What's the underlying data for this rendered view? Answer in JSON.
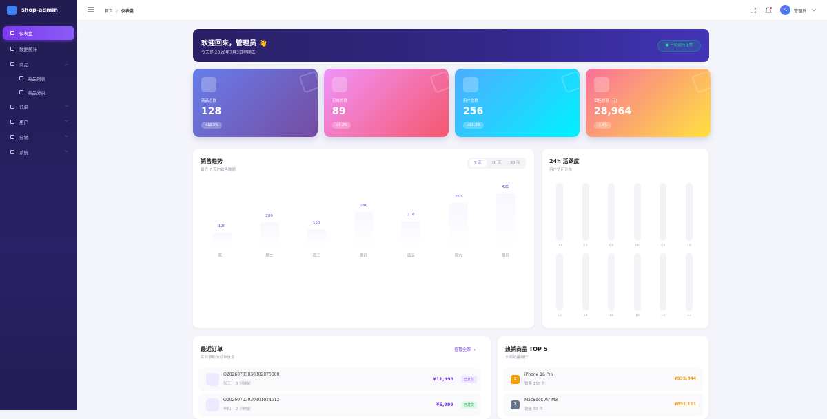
{
  "brand": "shop-admin",
  "menu": [
    {
      "label": "仪表盘"
    },
    {
      "label": "数据统计"
    },
    {
      "label": "商品",
      "children": [
        "商品列表",
        "商品分类"
      ]
    },
    {
      "label": "订单"
    },
    {
      "label": "用户"
    },
    {
      "label": "分销"
    },
    {
      "label": "系统"
    }
  ],
  "breadcrumb": [
    "首页",
    "仪表盘"
  ],
  "user": {
    "avatar": "A",
    "name": "管理员"
  },
  "welcome": {
    "title": "欢迎回来，管理员 👋",
    "date": "今天是 2026年7月3日星期五",
    "status": "一切运行正常"
  },
  "stats": [
    {
      "label": "商品总数",
      "value": "128",
      "change": "+12.5%"
    },
    {
      "label": "订单总数",
      "value": "89",
      "change": "+8.2%"
    },
    {
      "label": "用户总数",
      "value": "256",
      "change": "+15.3%"
    },
    {
      "label": "销售总额 (元)",
      "value": "28,964",
      "change": "-2.4%"
    }
  ],
  "sales_chart": {
    "title": "销售趋势",
    "subtitle": "最近 7 天的销售数据",
    "ranges": [
      "7 天",
      "30 天",
      "90 天"
    ],
    "categories": [
      "周一",
      "周二",
      "周三",
      "周四",
      "周五",
      "周六",
      "周日"
    ],
    "values": [
      120,
      200,
      150,
      280,
      210,
      350,
      420
    ]
  },
  "activity": {
    "title": "24h 活跃度",
    "subtitle": "用户访问分布",
    "hours": [
      "00",
      "02",
      "04",
      "06",
      "08",
      "10",
      "12",
      "14",
      "16",
      "18",
      "20",
      "22"
    ]
  },
  "orders": {
    "title": "最近订单",
    "subtitle": "实时更新的订单信息",
    "link": "查看全部 →",
    "rows": [
      {
        "id": "O20260703030302075080",
        "customer": "张三",
        "time": "3 分钟前",
        "amount": "¥11,998",
        "status": "已支付"
      },
      {
        "id": "O20260703030301024512",
        "customer": "李四",
        "time": "2 小时前",
        "amount": "¥5,999",
        "status": "已发货"
      }
    ]
  },
  "top_products": {
    "title": "热销商品 TOP 5",
    "subtitle": "本周销量排行",
    "items": [
      {
        "rank": 1,
        "name": "iPhone 16 Pro",
        "sales": "销量 156 件",
        "revenue": "¥935,844"
      },
      {
        "rank": 2,
        "name": "MacBook Air M3",
        "sales": "销量 89 件",
        "revenue": "¥891,111"
      }
    ]
  }
}
